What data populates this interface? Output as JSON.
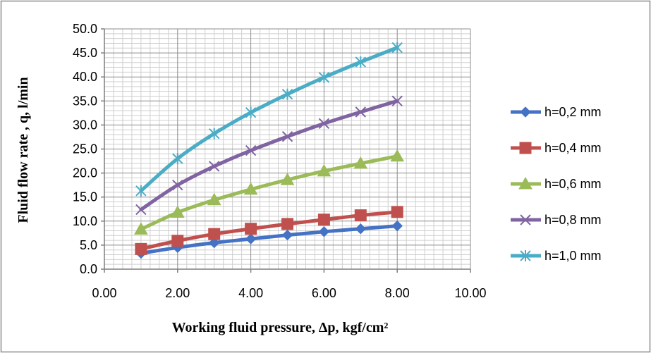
{
  "chart_data": {
    "type": "line",
    "title": "",
    "xlabel": "Working fluid pressure, Δp, kgf/cm²",
    "ylabel": "Fluid flow rate , q, l/min",
    "xlim": [
      0,
      10
    ],
    "ylim": [
      0,
      50
    ],
    "x_ticks": [
      "0.00",
      "2.00",
      "4.00",
      "6.00",
      "8.00",
      "10.00"
    ],
    "y_ticks": [
      "0.0",
      "5.0",
      "10.0",
      "15.0",
      "20.0",
      "25.0",
      "30.0",
      "35.0",
      "40.0",
      "45.0",
      "50.0"
    ],
    "grid": true,
    "legend_position": "right",
    "x": [
      1,
      2,
      3,
      4,
      5,
      6,
      7,
      8
    ],
    "series": [
      {
        "name": "h=0,2 mm",
        "color": "#4472C4",
        "marker": "diamond",
        "values": [
          3.3,
          4.5,
          5.5,
          6.3,
          7.1,
          7.8,
          8.4,
          9.0
        ]
      },
      {
        "name": "h=0,4 mm",
        "color": "#C0504D",
        "marker": "square",
        "values": [
          4.2,
          5.9,
          7.3,
          8.4,
          9.4,
          10.3,
          11.2,
          11.9
        ]
      },
      {
        "name": "h=0,6 mm",
        "color": "#9BBB59",
        "marker": "triangle",
        "values": [
          8.3,
          11.8,
          14.4,
          16.6,
          18.6,
          20.4,
          22.0,
          23.5
        ]
      },
      {
        "name": "h=0,8 mm",
        "color": "#8064A2",
        "marker": "x",
        "values": [
          12.4,
          17.5,
          21.4,
          24.7,
          27.6,
          30.3,
          32.7,
          35.0
        ]
      },
      {
        "name": "h=1,0 mm",
        "color": "#4BACC6",
        "marker": "star",
        "values": [
          16.3,
          23.0,
          28.2,
          32.6,
          36.4,
          39.9,
          43.1,
          46.1
        ]
      }
    ]
  }
}
